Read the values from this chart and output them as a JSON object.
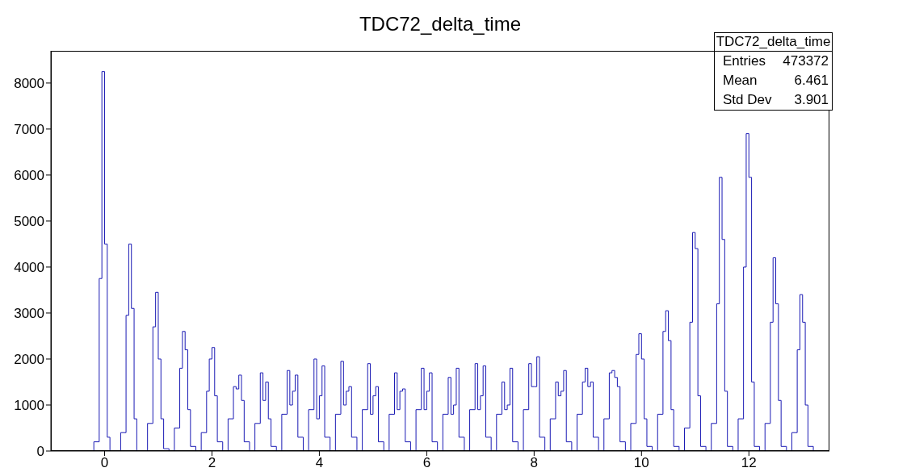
{
  "chart_data": {
    "type": "histogram",
    "title": "TDC72_delta_time",
    "color": "#1a1ab4",
    "bins": [
      -0.2,
      -0.1,
      -0.05,
      0,
      0.05,
      0.1,
      0.2,
      0.3,
      0.4,
      0.45,
      0.5,
      0.55,
      0.6,
      0.7,
      0.8,
      0.9,
      0.95,
      1,
      1.05,
      1.1,
      1.2,
      1.3,
      1.4,
      1.45,
      1.5,
      1.55,
      1.6,
      1.7,
      1.8,
      1.9,
      1.95,
      2,
      2.05,
      2.1,
      2.2,
      2.3,
      2.4,
      2.45,
      2.5,
      2.55,
      2.6,
      2.7,
      2.8,
      2.9,
      2.95,
      3,
      3.05,
      3.1,
      3.2,
      3.3,
      3.4,
      3.45,
      3.5,
      3.55,
      3.6,
      3.7,
      3.8,
      3.9,
      3.95,
      4,
      4.05,
      4.1,
      4.2,
      4.3,
      4.4,
      4.45,
      4.5,
      4.55,
      4.6,
      4.7,
      4.8,
      4.9,
      4.95,
      5,
      5.05,
      5.1,
      5.2,
      5.3,
      5.4,
      5.45,
      5.5,
      5.55,
      5.6,
      5.7,
      5.8,
      5.9,
      5.95,
      6,
      6.05,
      6.1,
      6.2,
      6.3,
      6.4,
      6.45,
      6.5,
      6.55,
      6.6,
      6.7,
      6.8,
      6.9,
      6.95,
      7,
      7.05,
      7.1,
      7.2,
      7.3,
      7.4,
      7.45,
      7.5,
      7.55,
      7.6,
      7.7,
      7.8,
      7.9,
      7.95,
      8,
      8.05,
      8.1,
      8.2,
      8.3,
      8.4,
      8.45,
      8.5,
      8.55,
      8.6,
      8.7,
      8.8,
      8.9,
      8.95,
      9,
      9.05,
      9.1,
      9.2,
      9.3,
      9.4,
      9.45,
      9.5,
      9.55,
      9.6,
      9.7,
      9.8,
      9.9,
      9.95,
      10,
      10.05,
      10.1,
      10.2,
      10.3,
      10.4,
      10.45,
      10.5,
      10.55,
      10.6,
      10.7,
      10.8,
      10.9,
      10.95,
      11,
      11.05,
      11.1,
      11.2,
      11.3,
      11.4,
      11.45,
      11.5,
      11.55,
      11.6,
      11.7,
      11.8,
      11.9,
      11.95,
      12,
      12.05,
      12.1,
      12.2,
      12.3,
      12.4,
      12.45,
      12.5,
      12.55,
      12.6,
      12.7,
      12.8,
      12.9,
      12.95,
      13,
      13.05,
      13.1,
      13.2
    ],
    "values": [
      200,
      3750,
      8250,
      4500,
      300,
      0,
      0,
      400,
      2950,
      4500,
      3100,
      700,
      0,
      0,
      600,
      2700,
      3450,
      2000,
      700,
      50,
      0,
      500,
      1800,
      2600,
      2200,
      900,
      100,
      0,
      400,
      1300,
      2000,
      2250,
      1200,
      200,
      0,
      700,
      1400,
      1350,
      1650,
      1100,
      200,
      0,
      600,
      1700,
      1100,
      1500,
      700,
      100,
      0,
      800,
      1750,
      1000,
      1300,
      1650,
      300,
      0,
      900,
      2000,
      700,
      1200,
      1850,
      300,
      0,
      800,
      1950,
      1000,
      1300,
      1400,
      300,
      0,
      900,
      1900,
      800,
      1200,
      1400,
      200,
      0,
      800,
      1700,
      900,
      1300,
      1350,
      200,
      0,
      900,
      1800,
      900,
      1300,
      1700,
      200,
      0,
      800,
      1600,
      800,
      1000,
      1800,
      300,
      0,
      900,
      1900,
      900,
      1200,
      1850,
      300,
      0,
      800,
      1500,
      900,
      1000,
      1800,
      200,
      0,
      900,
      1900,
      1400,
      1400,
      2050,
      300,
      0,
      700,
      1500,
      1200,
      1300,
      1750,
      200,
      0,
      800,
      1500,
      1800,
      1400,
      1500,
      300,
      0,
      700,
      1700,
      1750,
      1600,
      1400,
      200,
      0,
      600,
      2100,
      2550,
      2000,
      700,
      100,
      0,
      800,
      2600,
      3050,
      2400,
      900,
      100,
      0,
      500,
      2800,
      4750,
      4400,
      1200,
      100,
      0,
      600,
      3200,
      5950,
      4600,
      1300,
      100,
      0,
      700,
      4000,
      6900,
      5950,
      1500,
      100,
      0,
      600,
      2800,
      4200,
      3200,
      1100,
      100,
      0,
      400,
      2200,
      3400,
      2800,
      1000,
      100
    ],
    "xlim": [
      -1,
      13.5
    ],
    "xticks": [
      0,
      2,
      4,
      6,
      8,
      10,
      12
    ],
    "ylim": [
      0,
      8700
    ],
    "yticks": [
      0,
      1000,
      2000,
      3000,
      4000,
      5000,
      6000,
      7000,
      8000
    ],
    "annotations": [
      "TDC72_delta_time",
      "Entries",
      "473372",
      "Mean",
      "6.461",
      "Std Dev",
      "3.901"
    ]
  }
}
